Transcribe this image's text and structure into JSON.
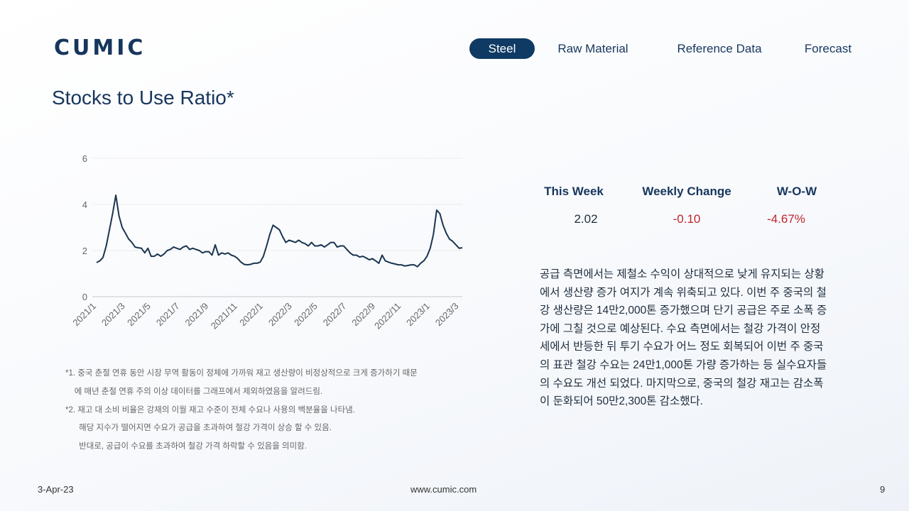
{
  "header": {
    "logo": "CUMIC",
    "nav": [
      "Steel",
      "Raw Material",
      "Reference Data",
      "Forecast"
    ]
  },
  "title": "Stocks to Use Ratio*",
  "chart_data": {
    "type": "line",
    "color": "#1b3550",
    "ylim": [
      0,
      6
    ],
    "yticks": [
      0,
      2,
      4,
      6
    ],
    "grid": true,
    "categories": [
      "2021/1",
      null,
      null,
      null,
      null,
      null,
      null,
      null,
      null,
      "2021/3",
      null,
      null,
      null,
      null,
      null,
      null,
      null,
      "2021/5",
      null,
      null,
      null,
      null,
      null,
      null,
      null,
      null,
      "2021/7",
      null,
      null,
      null,
      null,
      null,
      null,
      null,
      null,
      "2021/9",
      null,
      null,
      null,
      null,
      null,
      null,
      null,
      null,
      "2021/11",
      null,
      null,
      null,
      null,
      null,
      null,
      null,
      "2022/1",
      null,
      null,
      null,
      null,
      null,
      null,
      null,
      null,
      "2022/3",
      null,
      null,
      null,
      null,
      null,
      null,
      null,
      "2022/5",
      null,
      null,
      null,
      null,
      null,
      null,
      null,
      null,
      "2022/7",
      null,
      null,
      null,
      null,
      null,
      null,
      null,
      null,
      "2022/9",
      null,
      null,
      null,
      null,
      null,
      null,
      null,
      "2022/11",
      null,
      null,
      null,
      null,
      null,
      null,
      null,
      null,
      "2023/1",
      null,
      null,
      null,
      null,
      null,
      null,
      null,
      null,
      "2023/3",
      null
    ],
    "values": [
      1.48,
      1.55,
      1.7,
      2.2,
      2.9,
      3.6,
      4.4,
      3.5,
      3.0,
      2.75,
      2.5,
      2.35,
      2.15,
      2.12,
      2.1,
      1.9,
      2.1,
      1.75,
      1.75,
      1.85,
      1.75,
      1.85,
      2.0,
      2.05,
      2.15,
      2.1,
      2.05,
      2.15,
      2.2,
      2.05,
      2.1,
      2.05,
      2.0,
      1.9,
      1.95,
      1.95,
      1.8,
      2.25,
      1.8,
      1.9,
      1.85,
      1.9,
      1.8,
      1.75,
      1.65,
      1.5,
      1.4,
      1.38,
      1.4,
      1.45,
      1.45,
      1.5,
      1.75,
      2.2,
      2.7,
      3.1,
      3.0,
      2.9,
      2.6,
      2.35,
      2.45,
      2.4,
      2.35,
      2.45,
      2.35,
      2.3,
      2.2,
      2.35,
      2.2,
      2.2,
      2.25,
      2.15,
      2.25,
      2.35,
      2.35,
      2.15,
      2.2,
      2.2,
      2.05,
      1.9,
      1.8,
      1.8,
      1.72,
      1.75,
      1.68,
      1.6,
      1.65,
      1.55,
      1.45,
      1.8,
      1.55,
      1.5,
      1.45,
      1.42,
      1.38,
      1.38,
      1.33,
      1.35,
      1.38,
      1.38,
      1.3,
      1.45,
      1.55,
      1.75,
      2.1,
      2.7,
      3.75,
      3.6,
      3.1,
      2.75,
      2.5,
      2.4,
      2.25,
      2.1,
      2.12
    ]
  },
  "table": {
    "headers": [
      "This Week",
      "Weekly Change",
      "W-O-W"
    ],
    "rows": [
      [
        "2.02",
        "-0.10",
        "-4.67%"
      ]
    ]
  },
  "paragraph": [
    "공급 측면에서는 제철소 수익이 상대적으로 낮게 유지되는 상황",
    "에서 생산량 증가 여지가 계속 위축되고 있다. 이번 주 중국의 철",
    "강 생산량은 14만2,000톤 증가했으며 단기 공급은 주로 소폭 증",
    "가에 그칠 것으로 예상된다. 수요 측면에서는 철강 가격이 안정",
    "세에서 반등한 뒤 투기 수요가 어느 정도 회복되어 이번 주 중국",
    "의 표관 철강 수요는 24만1,000톤 가량 증가하는 등 실수요자들",
    "의 수요도 개선 되었다. 마지막으로, 중국의 철강 재고는 감소폭",
    "이 둔화되어 50만2,300톤 감소했다."
  ],
  "notes": [
    "*1. 중국 춘절 연휴 동안 시장 무역 활동이 정체에 가까워 재고 생산량이 비정상적으로 크게 증가하기 때문",
    "    에 매년 춘절 연휴 주의 이상 데이터를 그래프에서 제외하였음을 알려드림.",
    "*2. 재고 대 소비 비율은 강재의 이월 재고 수준이 전체 수요나 사용의 백분율을 나타냄.",
    "      해당 지수가 떨어지면 수요가 공급을 초과하여 철강 가격이 상승 할 수 있음.",
    "      반대로, 공급이 수요를 초과하여 철강 가격 하락할 수 있음을 의미함."
  ],
  "footer": {
    "date": "3-Apr-23",
    "url": "www.cumic.com",
    "page": "9"
  }
}
